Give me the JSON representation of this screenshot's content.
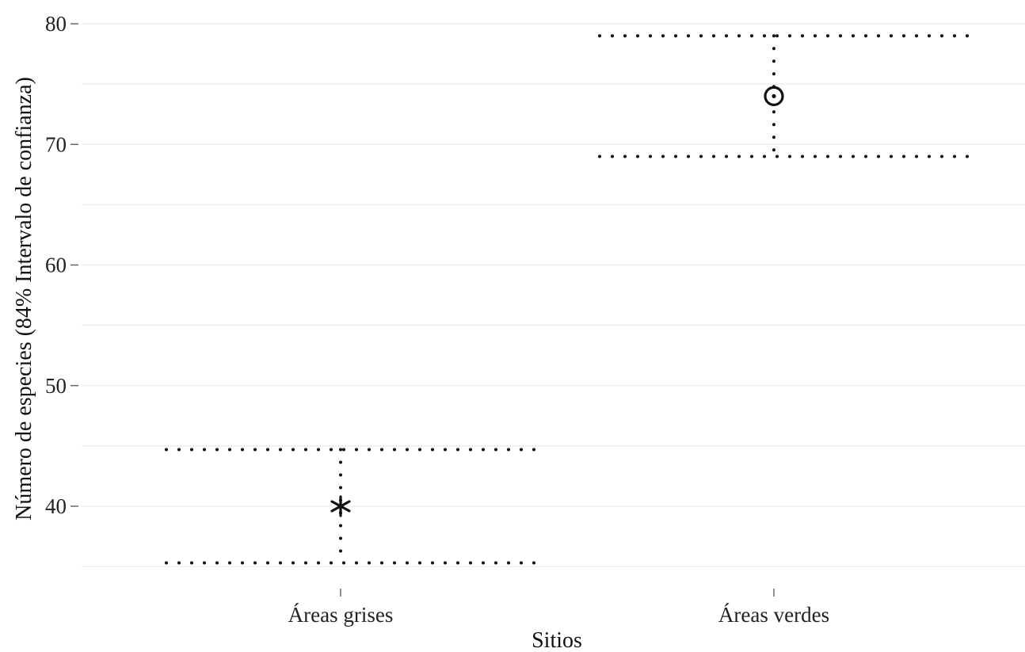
{
  "chart_data": {
    "type": "scatter",
    "xlabel": "Sitios",
    "ylabel": "Número de especies (84% Intervalo de confianza)",
    "ylim": [
      34.5,
      81.5
    ],
    "yticks": [
      40,
      50,
      60,
      70,
      80
    ],
    "grid": true,
    "categories": [
      "Áreas grises",
      "Áreas verdes"
    ],
    "points": [
      {
        "category": "Áreas grises",
        "value": 40,
        "ci_low": 35.3,
        "ci_high": 44.7,
        "marker": "asterisk-icon"
      },
      {
        "category": "Áreas verdes",
        "value": 74,
        "ci_low": 69,
        "ci_high": 79,
        "marker": "circle-dot-icon"
      }
    ],
    "colors": {
      "marks": "#111111",
      "grid": "#ececec",
      "text": "#222222"
    }
  }
}
